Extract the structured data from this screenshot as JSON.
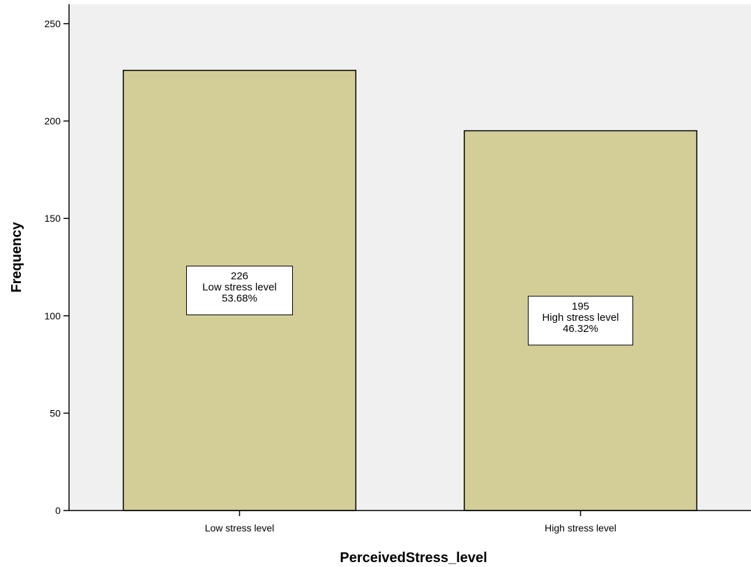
{
  "chart_data": {
    "type": "bar",
    "xlabel": "PerceivedStress_level",
    "ylabel": "Frequency",
    "categories": [
      "Low stress level",
      "High stress level"
    ],
    "values": [
      226,
      195
    ],
    "percentages": [
      "53.68%",
      "46.32%"
    ],
    "value_labels": [
      "226",
      "195"
    ],
    "ylim": [
      0,
      260
    ],
    "yticks": [
      0,
      50,
      100,
      150,
      200,
      250
    ],
    "ytick_labels": [
      "0",
      "50",
      "100",
      "150",
      "200",
      "250"
    ],
    "grid": false,
    "colors": {
      "plot_background": "#f0f0f0",
      "bar_fill": "#d3ce98",
      "bar_stroke": "#000000"
    }
  }
}
